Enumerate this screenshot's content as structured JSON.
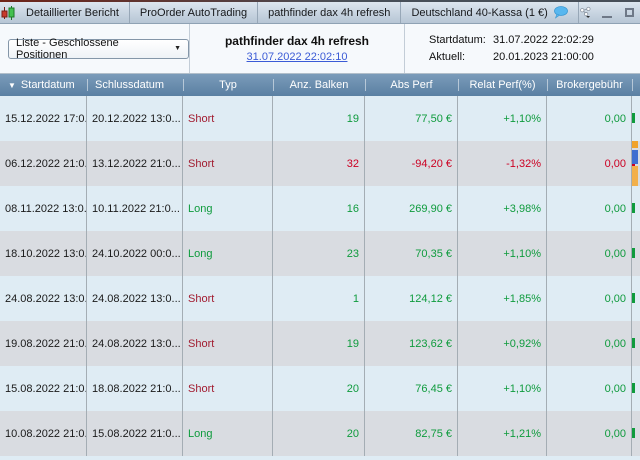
{
  "window": {
    "tabs": [
      "Detaillierter Bericht",
      "ProOrder AutoTrading",
      "pathfinder dax 4h refresh",
      "Deutschland 40-Kassa (1 €)"
    ]
  },
  "toolbar": {
    "view_selector": "Liste - Geschlossene Positionen",
    "strategy_title": "pathfinder dax 4h refresh",
    "report_link": "31.07.2022 22:02:10",
    "start_label": "Startdatum:",
    "start_value": "31.07.2022 22:02:29",
    "current_label": "Aktuell:",
    "current_value": "20.01.2023 21:00:00"
  },
  "table": {
    "columns": [
      "Startdatum",
      "Schlussdatum",
      "Typ",
      "Anz. Balken",
      "Abs Perf",
      "Relat Perf(%)",
      "Brokergebühr"
    ],
    "rows": [
      {
        "start": "15.12.2022 17:0...",
        "end": "20.12.2022 13:0...",
        "type": "Short",
        "bars": "19",
        "abs": "77,50 €",
        "rel": "+1,10%",
        "fee": "0,00",
        "perf": "pos"
      },
      {
        "start": "06.12.2022 21:0...",
        "end": "13.12.2022 21:0...",
        "type": "Short",
        "bars": "32",
        "abs": "-94,20 €",
        "rel": "-1,32%",
        "fee": "0,00",
        "perf": "neg"
      },
      {
        "start": "08.11.2022 13:0...",
        "end": "10.11.2022 21:0...",
        "type": "Long",
        "bars": "16",
        "abs": "269,90 €",
        "rel": "+3,98%",
        "fee": "0,00",
        "perf": "pos"
      },
      {
        "start": "18.10.2022 13:0...",
        "end": "24.10.2022 00:0...",
        "type": "Long",
        "bars": "23",
        "abs": "70,35 €",
        "rel": "+1,10%",
        "fee": "0,00",
        "perf": "pos"
      },
      {
        "start": "24.08.2022 13:0...",
        "end": "24.08.2022 13:0...",
        "type": "Short",
        "bars": "1",
        "abs": "124,12 €",
        "rel": "+1,85%",
        "fee": "0,00",
        "perf": "pos"
      },
      {
        "start": "19.08.2022 21:0...",
        "end": "24.08.2022 13:0...",
        "type": "Short",
        "bars": "19",
        "abs": "123,62 €",
        "rel": "+0,92%",
        "fee": "0,00",
        "perf": "pos"
      },
      {
        "start": "15.08.2022 21:0...",
        "end": "18.08.2022 21:0...",
        "type": "Short",
        "bars": "20",
        "abs": "76,45 €",
        "rel": "+1,10%",
        "fee": "0,00",
        "perf": "pos"
      },
      {
        "start": "10.08.2022 21:0...",
        "end": "15.08.2022 21:0...",
        "type": "Long",
        "bars": "20",
        "abs": "82,75 €",
        "rel": "+1,21%",
        "fee": "0,00",
        "perf": "pos"
      }
    ]
  },
  "icons": {
    "sort_desc": "▼",
    "dropdown_caret": "▼",
    "close": "✕"
  },
  "colors": {
    "positive_green": "#0f9b3d",
    "negative_red": "#cc0022",
    "type_short_red": "#a21c30",
    "type_long_green": "#0f9b3d",
    "header_blue": "#6189ac",
    "link_blue": "#3b5bd6",
    "row_light_blue": "#dfecf4",
    "row_light_gray": "#d9dce1"
  }
}
